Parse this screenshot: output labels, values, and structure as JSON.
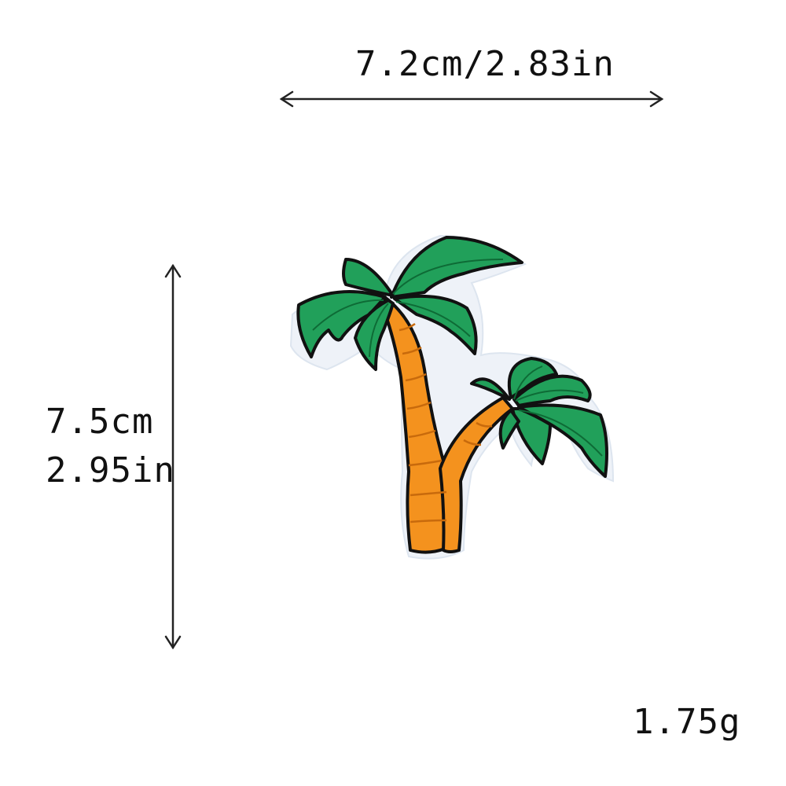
{
  "dimensions": {
    "width_label": "7.2cm/2.83in",
    "height_cm": "7.5cm",
    "height_in": "2.95in"
  },
  "weight_label": "1.75g",
  "product": {
    "icon": "palm-tree-patch-icon",
    "colors": {
      "leaf": "#21a05a",
      "leaf_dark": "#0e6b36",
      "trunk": "#f4921e",
      "trunk_dark": "#c86a0c",
      "outline": "#111111",
      "border": "#e8eef6"
    }
  }
}
